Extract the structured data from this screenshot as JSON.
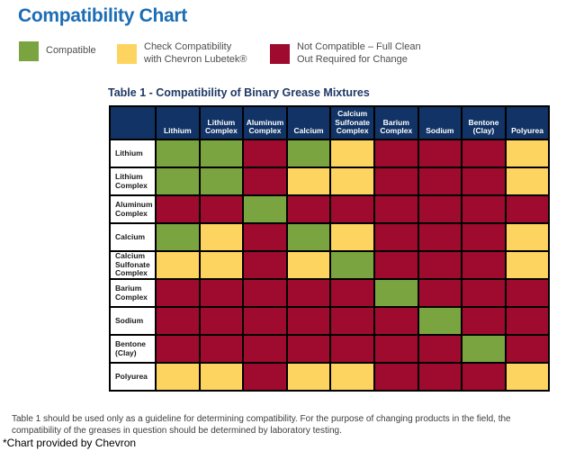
{
  "header": {
    "title": "Compatibility Chart"
  },
  "colors": {
    "title_blue": "#1C6DB5",
    "table_title_navy": "#1F3864",
    "header_navy": "#113365",
    "compatible_green": "#7AA43F",
    "check_yellow": "#FDD45F",
    "not_compatible_red": "#9E0B2F",
    "grid_black": "#000000"
  },
  "legend": {
    "items": [
      {
        "code": "G",
        "label": "Compatible",
        "color": "#7AA43F"
      },
      {
        "code": "Y",
        "label": "Check Compatibility\nwith Chevron Lubetek®",
        "color": "#FDD45F"
      },
      {
        "code": "R",
        "label": "Not Compatible – Full Clean\nOut Required for Change",
        "color": "#9E0B2F"
      }
    ]
  },
  "chart_data": {
    "type": "heatmap",
    "title": "Table 1 - Compatibility of Binary Grease Mixtures",
    "categories": [
      "Lithium",
      "Lithium Complex",
      "Aluminum Complex",
      "Calcium",
      "Calcium Sulfonate Complex",
      "Barium Complex",
      "Sodium",
      "Bentone (Clay)",
      "Polyurea"
    ],
    "value_legend": {
      "G": "Compatible",
      "Y": "Check Compatibility with Chevron Lubetek®",
      "R": "Not Compatible – Full Clean Out Required for Change"
    },
    "matrix": [
      [
        "G",
        "G",
        "R",
        "G",
        "Y",
        "R",
        "R",
        "R",
        "Y"
      ],
      [
        "G",
        "G",
        "R",
        "Y",
        "Y",
        "R",
        "R",
        "R",
        "Y"
      ],
      [
        "R",
        "R",
        "G",
        "R",
        "R",
        "R",
        "R",
        "R",
        "R"
      ],
      [
        "G",
        "Y",
        "R",
        "G",
        "Y",
        "R",
        "R",
        "R",
        "Y"
      ],
      [
        "Y",
        "Y",
        "R",
        "Y",
        "G",
        "R",
        "R",
        "R",
        "Y"
      ],
      [
        "R",
        "R",
        "R",
        "R",
        "R",
        "G",
        "R",
        "R",
        "R"
      ],
      [
        "R",
        "R",
        "R",
        "R",
        "R",
        "R",
        "G",
        "R",
        "R"
      ],
      [
        "R",
        "R",
        "R",
        "R",
        "R",
        "R",
        "R",
        "G",
        "R"
      ],
      [
        "Y",
        "Y",
        "R",
        "Y",
        "Y",
        "R",
        "R",
        "R",
        "Y"
      ]
    ],
    "layout": {
      "grid": true,
      "legend_position": "top"
    }
  },
  "footer": {
    "footnote": "Table 1 should be used only as a guideline for determining compatibility. For the purpose of changing products in the field, the compatibility of the greases in question should be determined by laboratory testing.",
    "attribution": "*Chart provided by Chevron"
  }
}
